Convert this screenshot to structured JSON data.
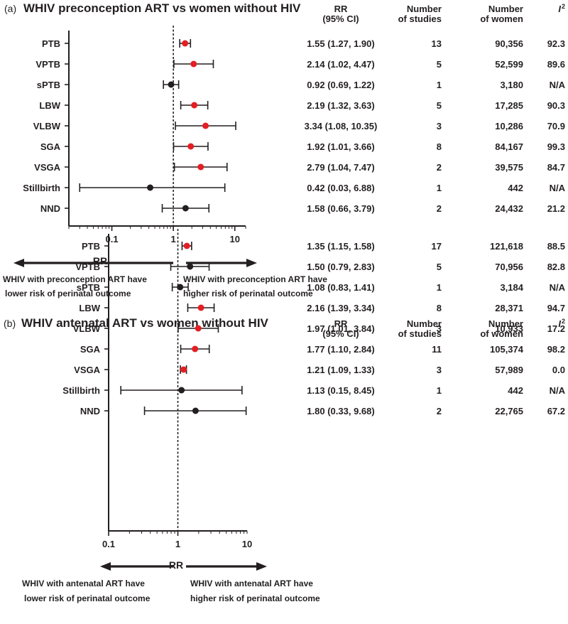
{
  "chart_data": [
    {
      "type": "forest",
      "panel_label": "(a)",
      "title": "WHIV preconception ART vs women without HIV",
      "xlabel": "RR",
      "xscale": "log",
      "xlim": [
        0.02,
        15
      ],
      "xticks": [
        0.1,
        1,
        10
      ],
      "xtick_labels": [
        "0.1",
        "1",
        "10"
      ],
      "reference_line": 1,
      "headers": {
        "rr_line1": "RR",
        "rr_line2": "(95% CI)",
        "studies_line1": "Number",
        "studies_line2": "of studies",
        "women_line1": "Number",
        "women_line2": "of women",
        "i2_base": "I",
        "i2_sup": "2"
      },
      "rows": [
        {
          "label": "PTB",
          "rr": 1.55,
          "lo": 1.27,
          "hi": 1.9,
          "rr_text": "1.55 (1.27, 1.90)",
          "studies": "13",
          "women": "90,356",
          "i2": "92.3",
          "color": "#e31e24"
        },
        {
          "label": "VPTB",
          "rr": 2.14,
          "lo": 1.02,
          "hi": 4.47,
          "rr_text": "2.14 (1.02, 4.47)",
          "studies": "5",
          "women": "52,599",
          "i2": "89.6",
          "color": "#e31e24"
        },
        {
          "label": "sPTB",
          "rr": 0.92,
          "lo": 0.69,
          "hi": 1.22,
          "rr_text": "0.92 (0.69, 1.22)",
          "studies": "1",
          "women": "3,180",
          "i2": "N/A",
          "color": "#231f20"
        },
        {
          "label": "LBW",
          "rr": 2.19,
          "lo": 1.32,
          "hi": 3.63,
          "rr_text": "2.19 (1.32, 3.63)",
          "studies": "5",
          "women": "17,285",
          "i2": "90.3",
          "color": "#e31e24"
        },
        {
          "label": "VLBW",
          "rr": 3.34,
          "lo": 1.08,
          "hi": 10.35,
          "rr_text": "3.34 (1.08, 10.35)",
          "studies": "3",
          "women": "10,286",
          "i2": "70.9",
          "color": "#e31e24"
        },
        {
          "label": "SGA",
          "rr": 1.92,
          "lo": 1.01,
          "hi": 3.66,
          "rr_text": "1.92 (1.01, 3.66)",
          "studies": "8",
          "women": "84,167",
          "i2": "99.3",
          "color": "#e31e24"
        },
        {
          "label": "VSGA",
          "rr": 2.79,
          "lo": 1.04,
          "hi": 7.47,
          "rr_text": "2.79 (1.04, 7.47)",
          "studies": "2",
          "women": "39,575",
          "i2": "84.7",
          "color": "#e31e24"
        },
        {
          "label": "Stillbirth",
          "rr": 0.42,
          "lo": 0.03,
          "hi": 6.88,
          "rr_text": "0.42 (0.03, 6.88)",
          "studies": "1",
          "women": "442",
          "i2": "N/A",
          "color": "#231f20"
        },
        {
          "label": "NND",
          "rr": 1.58,
          "lo": 0.66,
          "hi": 3.79,
          "rr_text": "1.58 (0.66, 3.79)",
          "studies": "2",
          "women": "24,432",
          "i2": "21.2",
          "color": "#231f20"
        }
      ],
      "arrow_left": {
        "line1": "WHIV with preconception ART have",
        "line2": "lower risk of perinatal outcome"
      },
      "arrow_right": {
        "line1": "WHIV with preconception ART have",
        "line2": "higher risk of perinatal outcome"
      }
    },
    {
      "type": "forest",
      "panel_label": "(b)",
      "title": "WHIV antenatal ART vs women without HIV",
      "xlabel": "RR",
      "xscale": "log",
      "xlim": [
        0.1,
        10
      ],
      "xticks": [
        0.1,
        1,
        10
      ],
      "xtick_labels": [
        "0.1",
        "1",
        "10"
      ],
      "reference_line": 1,
      "headers": {
        "rr_line1": "RR",
        "rr_line2": "(95% CI)",
        "studies_line1": "Number",
        "studies_line2": "of studies",
        "women_line1": "Number",
        "women_line2": "of women",
        "i2_base": "I",
        "i2_sup": "2"
      },
      "rows": [
        {
          "label": "PTB",
          "rr": 1.35,
          "lo": 1.15,
          "hi": 1.58,
          "rr_text": "1.35 (1.15, 1.58)",
          "studies": "17",
          "women": "121,618",
          "i2": "88.5",
          "color": "#e31e24"
        },
        {
          "label": "VPTB",
          "rr": 1.5,
          "lo": 0.79,
          "hi": 2.83,
          "rr_text": "1.50 (0.79, 2.83)",
          "studies": "5",
          "women": "70,956",
          "i2": "82.8",
          "color": "#231f20"
        },
        {
          "label": "sPTB",
          "rr": 1.08,
          "lo": 0.83,
          "hi": 1.41,
          "rr_text": "1.08 (0.83, 1.41)",
          "studies": "1",
          "women": "3,184",
          "i2": "N/A",
          "color": "#231f20"
        },
        {
          "label": "LBW",
          "rr": 2.16,
          "lo": 1.39,
          "hi": 3.34,
          "rr_text": "2.16 (1.39, 3.34)",
          "studies": "8",
          "women": "28,371",
          "i2": "94.7",
          "color": "#e31e24"
        },
        {
          "label": "VLBW",
          "rr": 1.97,
          "lo": 1.01,
          "hi": 3.84,
          "rr_text": "1.97 (1.01, 3.84)",
          "studies": "3",
          "women": "10,933",
          "i2": "17.2",
          "color": "#e31e24"
        },
        {
          "label": "SGA",
          "rr": 1.77,
          "lo": 1.1,
          "hi": 2.84,
          "rr_text": "1.77 (1.10, 2.84)",
          "studies": "11",
          "women": "105,374",
          "i2": "98.2",
          "color": "#e31e24"
        },
        {
          "label": "VSGA",
          "rr": 1.21,
          "lo": 1.09,
          "hi": 1.33,
          "rr_text": "1.21 (1.09, 1.33)",
          "studies": "3",
          "women": "57,989",
          "i2": "0.0",
          "color": "#e31e24"
        },
        {
          "label": "Stillbirth",
          "rr": 1.13,
          "lo": 0.15,
          "hi": 8.45,
          "rr_text": "1.13 (0.15, 8.45)",
          "studies": "1",
          "women": "442",
          "i2": "N/A",
          "color": "#231f20"
        },
        {
          "label": "NND",
          "rr": 1.8,
          "lo": 0.33,
          "hi": 9.68,
          "rr_text": "1.80 (0.33, 9.68)",
          "studies": "2",
          "women": "22,765",
          "i2": "67.2",
          "color": "#231f20"
        }
      ],
      "arrow_left": {
        "line1": "WHIV with antenatal ART have",
        "line2": "lower risk of perinatal outcome"
      },
      "arrow_right": {
        "line1": "WHIV with antenatal ART have",
        "line2": "higher risk of perinatal outcome"
      }
    }
  ]
}
